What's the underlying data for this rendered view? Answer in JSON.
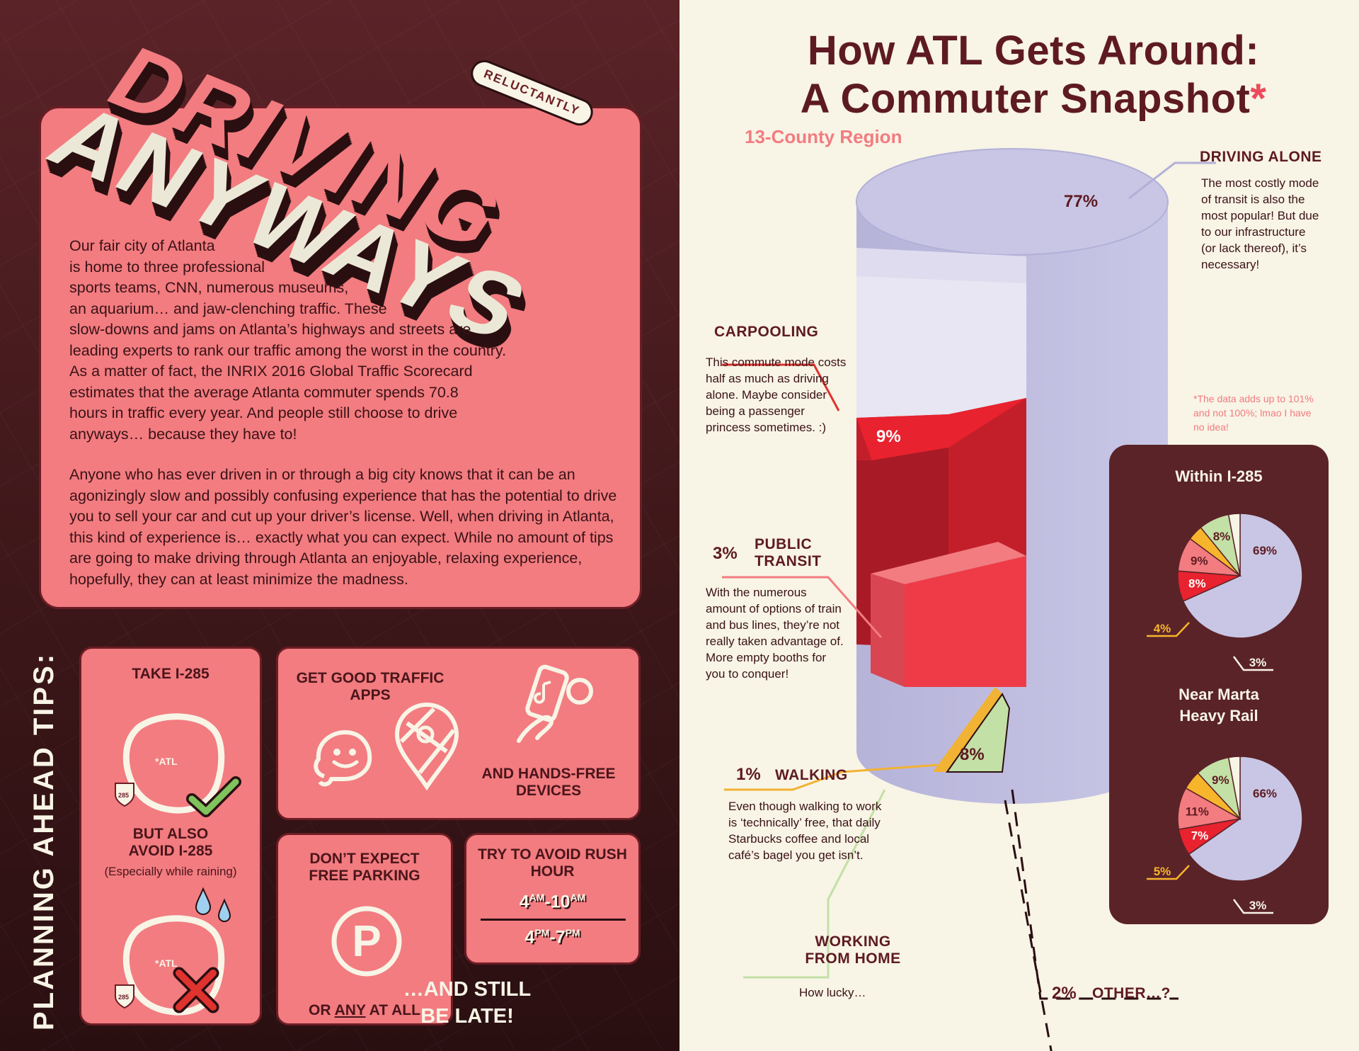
{
  "left": {
    "title_line1": "DRIVING",
    "title_line2": "ANYWAYS",
    "badge": "RELUCTANTLY",
    "intro_p1_lines": [
      "Our fair city of Atlanta",
      "is home to three professional",
      "sports teams, CNN, numerous museums,",
      "an aquarium… and jaw-clenching traffic. These",
      "slow-downs and jams on Atlanta’s highways and streets are",
      "leading experts to rank our traffic among the worst in the country.",
      "As a matter of fact, the INRIX 2016 Global Traffic Scorecard",
      "estimates that the average Atlanta commuter spends 70.8",
      "hours in traffic every year. And people still choose to drive",
      "anyways… because they have to!"
    ],
    "intro_p2": "Anyone who has ever driven in or through a big city knows that it can be an agonizingly slow and possibly confusing experience that has the potential to drive you to sell your car and cut up your driver’s license. Well, when driving in Atlanta, this kind of experience is… exactly what you can expect. While no amount of tips are going to make driving through Atlanta an enjoyable, relaxing experience, hopefully, they can at least minimize the madness.",
    "tips_label": "PLANNING AHEAD TIPS:",
    "tips": {
      "take_285": "TAKE I-285",
      "avoid_285": "BUT ALSO AVOID I-285",
      "avoid_285_note": "(Especially while raining)",
      "map_label": "*ATL",
      "shield": "285",
      "apps": "GET GOOD TRAFFIC APPS",
      "handsfree": "AND HANDS-FREE DEVICES",
      "parking": "DON’T EXPECT FREE PARKING",
      "parking_letter": "P",
      "parking_or": "OR ",
      "parking_any": "ANY",
      "parking_atall": " AT ALL",
      "rush": "TRY TO AVOID RUSH HOUR",
      "am_start": "4",
      "am_sup1": "AM",
      "am_dash": "-10",
      "am_sup2": "AM",
      "pm_start": "4",
      "pm_sup1": "PM",
      "pm_dash": "-7",
      "pm_sup2": "PM",
      "late": "…AND STILL BE LATE!"
    }
  },
  "right": {
    "title_line1": "How ATL Gets Around:",
    "title_line2": "A Commuter Snapshot",
    "title_mark": "*",
    "subtitle": "13-County Region",
    "footnote": "*The data adds up to 101% and not 100%; lmao I have no idea!",
    "segments": {
      "driving_alone": {
        "head": "DRIVING ALONE",
        "pct": "77%",
        "desc": "The most costly mode of transit is also the most popular! But due to our infrastructure (or lack thereof), it’s necessary!"
      },
      "carpooling": {
        "head": "CARPOOLING",
        "pct": "9%",
        "desc": "This commute mode costs half as much as driving alone. Maybe consider being a passenger princess sometimes. :)"
      },
      "public_transit": {
        "head": "PUBLIC TRANSIT",
        "pct": "3%",
        "desc": "With the numerous amount of options of train and bus lines, they’re not really taken advantage of. More empty booths for you to conquer!"
      },
      "walking": {
        "head": "WALKING",
        "pct": "1%",
        "desc": "Even though walking to work is ‘technically’ free, that daily Starbucks coffee and local café’s bagel you get isn’t."
      },
      "wfh": {
        "head": "WORKING FROM HOME",
        "pct": "8%",
        "desc": "How lucky…"
      },
      "other": {
        "head": "OTHER…?",
        "pct": "2%"
      }
    }
  },
  "chart_data": [
    {
      "type": "pie",
      "title": "How ATL Gets Around: A Commuter Snapshot",
      "subtitle": "13-County Region",
      "categories": [
        "DRIVING ALONE",
        "CARPOOLING",
        "PUBLIC TRANSIT",
        "WALKING",
        "WORKING FROM HOME",
        "OTHER…?"
      ],
      "values": [
        77,
        9,
        3,
        1,
        8,
        2
      ],
      "colors": [
        "#c8c6e4",
        "#e8222e",
        "#ef3b48",
        "#f2b233",
        "#c3e0a6",
        "#f4f0e0"
      ]
    },
    {
      "type": "pie",
      "title": "Within I-285",
      "values": [
        69,
        8,
        9,
        4,
        8,
        3
      ],
      "colors": [
        "#c8c6e4",
        "#e8222e",
        "#f27c80",
        "#f7b52c",
        "#c3e0a6",
        "#f8f4e6"
      ],
      "labels": [
        "69%",
        "8%",
        "9%",
        "4%",
        "8%",
        "3%"
      ]
    },
    {
      "type": "pie",
      "title": "Near Marta Heavy Rail",
      "values": [
        66,
        7,
        11,
        5,
        9,
        3
      ],
      "colors": [
        "#c8c6e4",
        "#e8222e",
        "#f27c80",
        "#f7b52c",
        "#c3e0a6",
        "#f8f4e6"
      ],
      "labels": [
        "66%",
        "7%",
        "11%",
        "5%",
        "9%",
        "3%"
      ]
    }
  ],
  "colors": {
    "burgundy": "#5a2328",
    "coral": "#f27c80",
    "cream": "#f8f4e6",
    "lavender": "#c8c6e4"
  }
}
